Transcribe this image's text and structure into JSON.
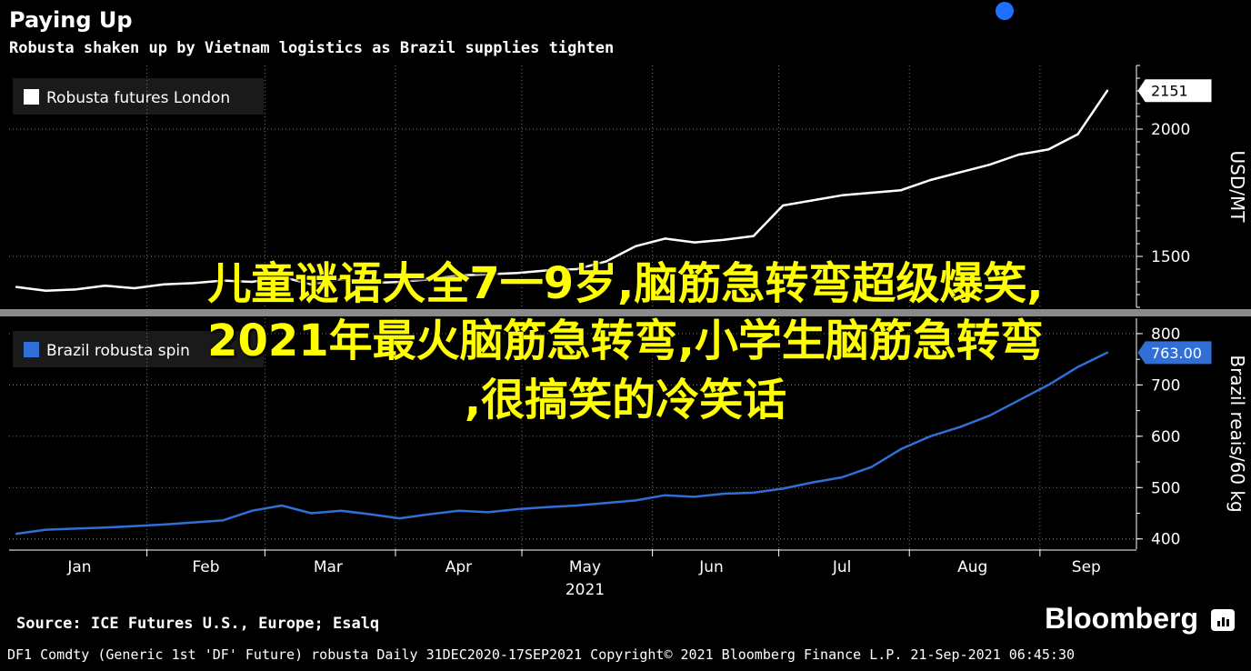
{
  "header": {
    "title": "Paying Up",
    "subtitle": "Robusta shaken up by Vietnam logistics as Brazil supplies tighten"
  },
  "colors": {
    "background": "#000000",
    "upper_series": "#ffffff",
    "lower_series": "#2f6fd6",
    "overlay_text": "#ffff00",
    "marker_dot": "#1e6fff"
  },
  "chart_data": [
    {
      "type": "line",
      "title": "",
      "ylabel": "USD/MT",
      "ylim": [
        1300,
        2250
      ],
      "yticks": [
        "2000",
        "1500"
      ],
      "ytick_values": [
        2000,
        1500
      ],
      "last_value_label": "2151",
      "legend_position": "top-left",
      "series": [
        {
          "name": "Robusta futures London",
          "x": [
            "2021-01-01",
            "2021-01-08",
            "2021-01-15",
            "2021-01-22",
            "2021-01-29",
            "2021-02-05",
            "2021-02-12",
            "2021-02-19",
            "2021-02-26",
            "2021-03-05",
            "2021-03-12",
            "2021-03-19",
            "2021-03-26",
            "2021-04-02",
            "2021-04-09",
            "2021-04-16",
            "2021-04-23",
            "2021-04-30",
            "2021-05-07",
            "2021-05-14",
            "2021-05-21",
            "2021-05-28",
            "2021-06-04",
            "2021-06-11",
            "2021-06-18",
            "2021-06-25",
            "2021-07-02",
            "2021-07-09",
            "2021-07-16",
            "2021-07-23",
            "2021-07-30",
            "2021-08-06",
            "2021-08-13",
            "2021-08-20",
            "2021-08-27",
            "2021-09-03",
            "2021-09-10",
            "2021-09-17"
          ],
          "values": [
            1380,
            1365,
            1370,
            1385,
            1375,
            1390,
            1395,
            1405,
            1400,
            1420,
            1390,
            1410,
            1395,
            1400,
            1410,
            1425,
            1430,
            1435,
            1445,
            1450,
            1480,
            1540,
            1570,
            1555,
            1565,
            1580,
            1700,
            1720,
            1740,
            1750,
            1760,
            1800,
            1830,
            1860,
            1900,
            1920,
            1980,
            2151
          ]
        }
      ]
    },
    {
      "type": "line",
      "title": "",
      "ylabel": "Brazil reais/60 kg",
      "ylim": [
        380,
        830
      ],
      "yticks": [
        "800",
        "700",
        "600",
        "500",
        "400"
      ],
      "ytick_values": [
        800,
        700,
        600,
        500,
        400
      ],
      "last_value_label": "763.00",
      "legend_position": "top-left",
      "series": [
        {
          "name": "Brazil robusta spin",
          "x": [
            "2021-01-01",
            "2021-01-08",
            "2021-01-15",
            "2021-01-22",
            "2021-01-29",
            "2021-02-05",
            "2021-02-12",
            "2021-02-19",
            "2021-02-26",
            "2021-03-05",
            "2021-03-12",
            "2021-03-19",
            "2021-03-26",
            "2021-04-02",
            "2021-04-09",
            "2021-04-16",
            "2021-04-23",
            "2021-04-30",
            "2021-05-07",
            "2021-05-14",
            "2021-05-21",
            "2021-05-28",
            "2021-06-04",
            "2021-06-11",
            "2021-06-18",
            "2021-06-25",
            "2021-07-02",
            "2021-07-09",
            "2021-07-16",
            "2021-07-23",
            "2021-07-30",
            "2021-08-06",
            "2021-08-13",
            "2021-08-20",
            "2021-08-27",
            "2021-09-03",
            "2021-09-10",
            "2021-09-17"
          ],
          "values": [
            410,
            418,
            420,
            422,
            425,
            428,
            432,
            436,
            455,
            465,
            450,
            455,
            448,
            440,
            448,
            455,
            452,
            458,
            462,
            465,
            470,
            475,
            485,
            482,
            488,
            490,
            498,
            510,
            520,
            540,
            575,
            600,
            618,
            640,
            670,
            700,
            735,
            763
          ]
        }
      ]
    }
  ],
  "x_axis": {
    "months": [
      "Jan",
      "Feb",
      "Mar",
      "Apr",
      "May",
      "Jun",
      "Jul",
      "Aug",
      "Sep"
    ],
    "year_label": "2021"
  },
  "footer": {
    "source": "Source: ICE Futures U.S., Europe; Esalq",
    "brand": "Bloomberg",
    "terminal_line": "DF1 Comdty (Generic 1st 'DF' Future) robusta  Daily 31DEC2020-17SEP2021  Copyright© 2021 Bloomberg Finance L.P.  21-Sep-2021 06:45:30"
  },
  "overlay": {
    "line1": "儿童谜语大全7一9岁,脑筋急转弯超级爆笑,",
    "line2": "2021年最火脑筋急转弯,小学生脑筋急转弯",
    "line3": ",很搞笑的冷笑话"
  }
}
